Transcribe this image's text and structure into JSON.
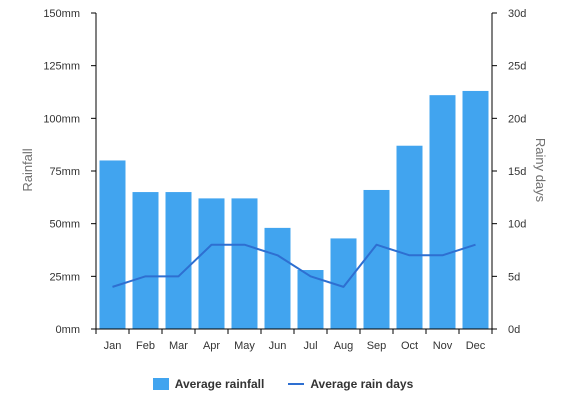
{
  "chart_data": {
    "type": "bar",
    "categories": [
      "Jan",
      "Feb",
      "Mar",
      "Apr",
      "May",
      "Jun",
      "Jul",
      "Aug",
      "Sep",
      "Oct",
      "Nov",
      "Dec"
    ],
    "series": [
      {
        "name": "Average rainfall",
        "type": "bar",
        "axis": "left",
        "values": [
          80,
          65,
          65,
          62,
          62,
          48,
          28,
          43,
          66,
          87,
          111,
          113
        ]
      },
      {
        "name": "Average rain days",
        "type": "line",
        "axis": "right",
        "values": [
          4,
          5,
          5,
          8,
          8,
          7,
          5,
          4,
          8,
          7,
          7,
          8
        ]
      }
    ],
    "ylabel": "Rainfall",
    "y2label": "Rainy days",
    "ylim": [
      0,
      150
    ],
    "y2lim": [
      0,
      30
    ],
    "yticks": [
      "0mm",
      "25mm",
      "50mm",
      "75mm",
      "100mm",
      "125mm",
      "150mm"
    ],
    "y2ticks": [
      "0d",
      "5d",
      "10d",
      "15d",
      "20d",
      "25d",
      "30d"
    ],
    "colors": {
      "bar": "#41a4ef",
      "line": "#2e6fd1",
      "axis": "#000000",
      "tick_text": "#333333",
      "axis_title": "#707070"
    },
    "grid": false,
    "legend_position": "bottom-center"
  }
}
